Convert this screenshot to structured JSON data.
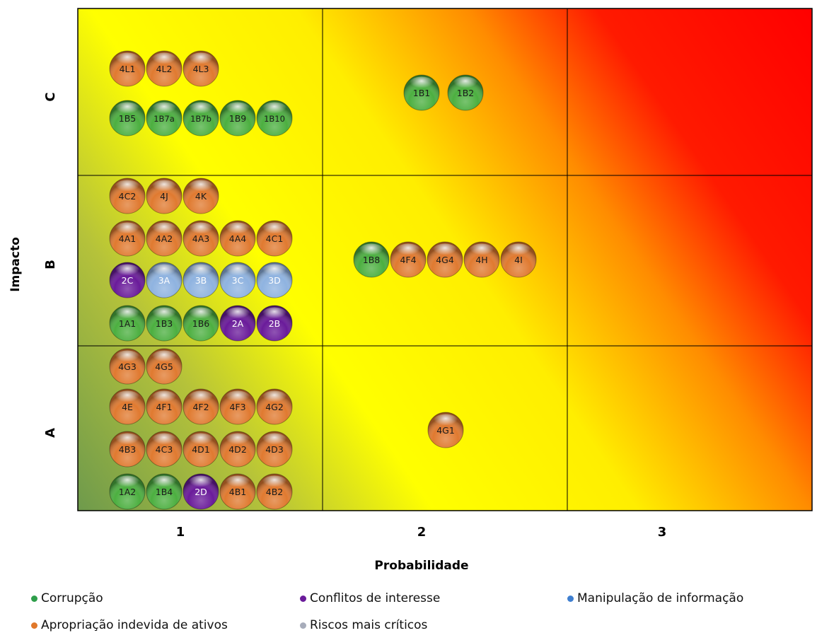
{
  "chart_data": {
    "type": "scatter",
    "title": "",
    "xlabel": "Probabilidade",
    "ylabel": "Impacto",
    "x_ticks": [
      "1",
      "2",
      "3"
    ],
    "y_ticks": [
      "A",
      "B",
      "C"
    ],
    "grid": true,
    "legend_position": "bottom",
    "series": [
      {
        "name": "Corrupção",
        "key": "corrupcao",
        "color": "#4caf40"
      },
      {
        "name": "Conflitos de interesse",
        "key": "conflitos",
        "color": "#6a1b9a"
      },
      {
        "name": "Manipulação de informação",
        "key": "manipulacao",
        "color": "#8fb3e0"
      },
      {
        "name": "Apropriação indevida de ativos",
        "key": "apropriacao",
        "color": "#e07a30"
      },
      {
        "name": "Riscos mais críticos",
        "key": "criticos",
        "color": "#b8bcc8"
      }
    ],
    "cells": [
      {
        "x": "1",
        "y": "C",
        "rows": [
          [
            [
              "4L1",
              "apropriacao"
            ],
            [
              "4L2",
              "apropriacao"
            ],
            [
              "4L3",
              "apropriacao"
            ]
          ],
          [
            [
              "1B5",
              "corrupcao"
            ],
            [
              "1B7a",
              "corrupcao"
            ],
            [
              "1B7b",
              "corrupcao"
            ],
            [
              "1B9",
              "corrupcao"
            ],
            [
              "1B10",
              "corrupcao"
            ]
          ]
        ]
      },
      {
        "x": "2",
        "y": "C",
        "rows": [
          [
            [
              "1B1",
              "corrupcao"
            ],
            [
              "1B2",
              "corrupcao"
            ]
          ]
        ]
      },
      {
        "x": "1",
        "y": "B",
        "rows": [
          [
            [
              "4C2",
              "apropriacao"
            ],
            [
              "4J",
              "apropriacao"
            ],
            [
              "4K",
              "apropriacao"
            ]
          ],
          [
            [
              "4A1",
              "apropriacao"
            ],
            [
              "4A2",
              "apropriacao"
            ],
            [
              "4A3",
              "apropriacao"
            ],
            [
              "4A4",
              "apropriacao"
            ],
            [
              "4C1",
              "apropriacao"
            ]
          ],
          [
            [
              "2C",
              "conflitos"
            ],
            [
              "3A",
              "manipulacao"
            ],
            [
              "3B",
              "manipulacao"
            ],
            [
              "3C",
              "manipulacao"
            ],
            [
              "3D",
              "manipulacao"
            ]
          ],
          [
            [
              "1A1",
              "corrupcao"
            ],
            [
              "1B3",
              "corrupcao"
            ],
            [
              "1B6",
              "corrupcao"
            ],
            [
              "2A",
              "conflitos"
            ],
            [
              "2B",
              "conflitos"
            ]
          ]
        ]
      },
      {
        "x": "2",
        "y": "B",
        "rows": [
          [
            [
              "1B8",
              "corrupcao"
            ],
            [
              "4F4",
              "apropriacao"
            ],
            [
              "4G4",
              "apropriacao"
            ],
            [
              "4H",
              "apropriacao"
            ],
            [
              "4I",
              "apropriacao"
            ]
          ]
        ]
      },
      {
        "x": "1",
        "y": "A",
        "rows": [
          [
            [
              "4G3",
              "apropriacao"
            ],
            [
              "4G5",
              "apropriacao"
            ]
          ],
          [
            [
              "4E",
              "apropriacao"
            ],
            [
              "4F1",
              "apropriacao"
            ],
            [
              "4F2",
              "apropriacao"
            ],
            [
              "4F3",
              "apropriacao"
            ],
            [
              "4G2",
              "apropriacao"
            ]
          ],
          [
            [
              "4B3",
              "apropriacao"
            ],
            [
              "4C3",
              "apropriacao"
            ],
            [
              "4D1",
              "apropriacao"
            ],
            [
              "4D2",
              "apropriacao"
            ],
            [
              "4D3",
              "apropriacao"
            ]
          ],
          [
            [
              "1A2",
              "corrupcao"
            ],
            [
              "1B4",
              "corrupcao"
            ],
            [
              "2D",
              "conflitos"
            ],
            [
              "4B1",
              "apropriacao"
            ],
            [
              "4B2",
              "apropriacao"
            ]
          ]
        ]
      },
      {
        "x": "2",
        "y": "A",
        "rows": [
          [
            [
              "4G1",
              "apropriacao"
            ]
          ]
        ]
      }
    ]
  }
}
